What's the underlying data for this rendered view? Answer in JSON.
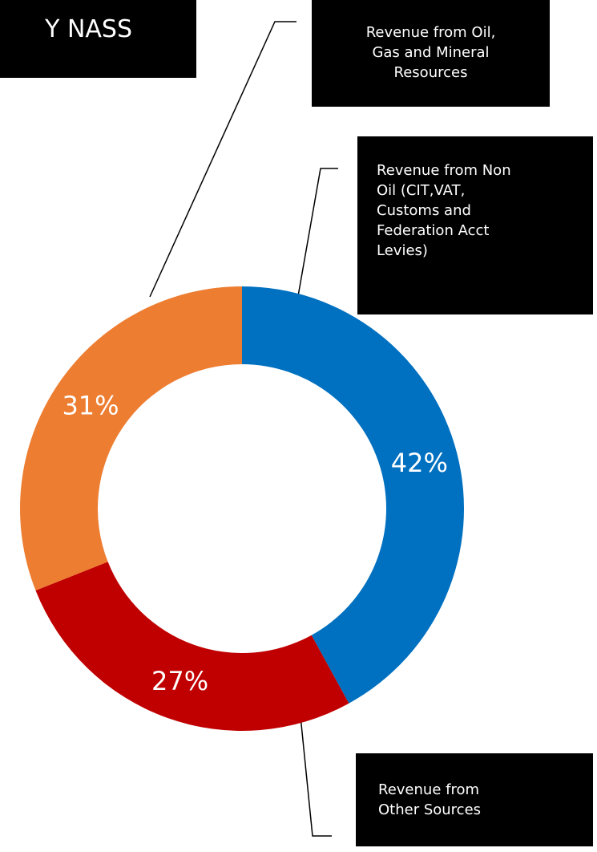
{
  "title": "Y NASS",
  "chart_data": {
    "type": "pie",
    "style": "donut",
    "title": "Y NASS",
    "slices": [
      {
        "label": "Revenue from Non Oil (CIT,VAT, Customs and Federation Acct Levies)",
        "value": 42,
        "value_label": "42%",
        "color": "#0070C0"
      },
      {
        "label": "Revenue from Other Sources",
        "value": 27,
        "value_label": "27%",
        "color": "#C00000"
      },
      {
        "label": "Revenue from Oil, Gas and Mineral Resources",
        "value": 31,
        "value_label": "31%",
        "color": "#ED7D31"
      }
    ]
  },
  "callouts": {
    "oil": "Revenue from Oil,\nGas and Mineral\nResources",
    "non_oil": "Revenue from  Non\nOil (CIT,VAT,\nCustoms and\nFederation Acct\nLevies)",
    "other": "Revenue from\nOther Sources"
  }
}
